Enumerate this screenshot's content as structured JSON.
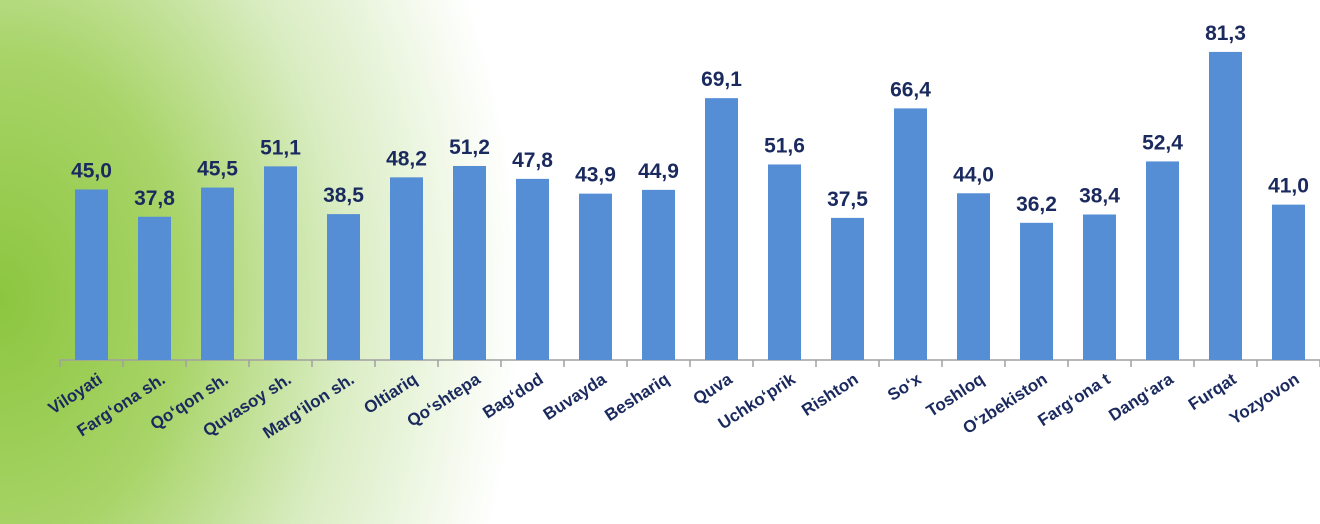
{
  "chart_data": {
    "type": "bar",
    "categories": [
      "Viloyati",
      "Farg‘ona sh.",
      "Qo‘qon sh.",
      "Quvasoy sh.",
      "Marg‘ilon sh.",
      "Oltiariq",
      "Qo‘shtepa",
      "Bag‘dod",
      "Buvayda",
      "Beshariq",
      "Quva",
      "Uchko‘prik",
      "Rishton",
      "So‘x",
      "Toshloq",
      "O‘zbekiston",
      "Farg‘ona t",
      "Dang‘ara",
      "Furqat",
      "Yozyovon"
    ],
    "values": [
      45.0,
      37.8,
      45.5,
      51.1,
      38.5,
      48.2,
      51.2,
      47.8,
      43.9,
      44.9,
      69.1,
      51.6,
      37.5,
      66.4,
      44.0,
      36.2,
      38.4,
      52.4,
      81.3,
      41.0
    ],
    "value_labels": [
      "45,0",
      "37,8",
      "45,5",
      "51,1",
      "38,5",
      "48,2",
      "51,2",
      "47,8",
      "43,9",
      "44,9",
      "69,1",
      "51,6",
      "37,5",
      "66,4",
      "44,0",
      "36,2",
      "38,4",
      "52,4",
      "81,3",
      "41,0"
    ],
    "color": "#558ed5",
    "ylim": [
      0,
      95
    ]
  }
}
